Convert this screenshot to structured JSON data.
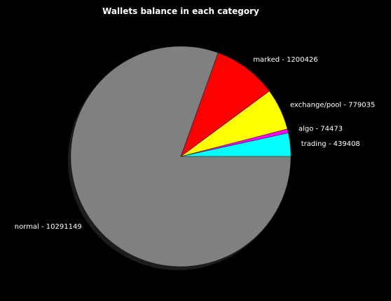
{
  "chart_data": {
    "type": "pie",
    "title": "Wallets balance in each category",
    "slices": [
      {
        "name": "trading",
        "value": 439408,
        "color": "#00ffff",
        "label": "trading - 439408"
      },
      {
        "name": "algo",
        "value": 74473,
        "color": "#ff00ff",
        "label": "algo - 74473"
      },
      {
        "name": "exchange/pool",
        "value": 779035,
        "color": "#ffff00",
        "label": "exchange/pool - 779035"
      },
      {
        "name": "marked",
        "value": 1200426,
        "color": "#ff0000",
        "label": "marked - 1200426"
      },
      {
        "name": "normal",
        "value": 10291149,
        "color": "#808080",
        "label": "normal - 10291149"
      }
    ],
    "start_angle_deg": 0,
    "direction": "counterclockwise",
    "shadow": true,
    "background": "#000000"
  }
}
